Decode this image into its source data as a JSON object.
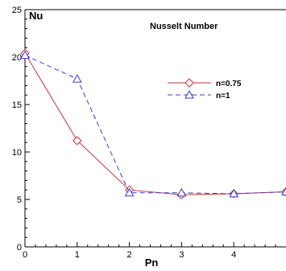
{
  "chart_data": {
    "type": "line",
    "title": "Nusselt Number",
    "xlabel": "Pn",
    "ylabel": "Nu",
    "xlim": [
      0,
      5
    ],
    "ylim": [
      0,
      25
    ],
    "xticks": [
      "0",
      "1",
      "2",
      "3",
      "4"
    ],
    "yticks": [
      "0",
      "5",
      "10",
      "15",
      "20",
      "25"
    ],
    "grid": false,
    "legend_position": "upper-right",
    "series": [
      {
        "name": "n=0.75",
        "marker": "diamond",
        "line": "solid",
        "color": "#c0303a",
        "x": [
          0,
          1,
          2,
          3,
          4,
          5
        ],
        "y": [
          20.4,
          11.2,
          6.0,
          5.5,
          5.6,
          5.8
        ]
      },
      {
        "name": "n=1",
        "marker": "triangle",
        "line": "dashed",
        "color": "#3a3ad0",
        "x": [
          0,
          1,
          2,
          3,
          4,
          5
        ],
        "y": [
          20.2,
          17.7,
          5.7,
          5.7,
          5.6,
          5.8
        ]
      }
    ]
  }
}
